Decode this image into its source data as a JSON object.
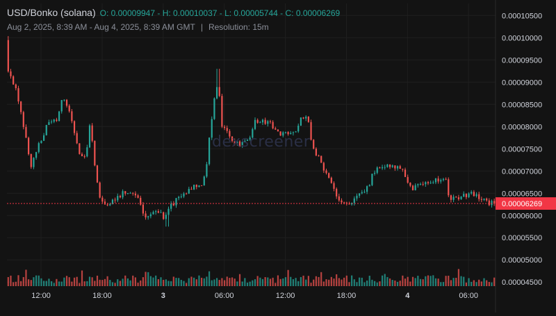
{
  "header": {
    "pair": "USD/Bonko (solana)",
    "ohlc": "O: 0.00009947 - H: 0.00010037 - L: 0.00005744 - C: 0.00006269",
    "range": "Aug 2, 2025, 8:39 AM - Aug 4, 2025, 8:39 AM GMT",
    "separator": "|",
    "resolution": "Resolution: 15m"
  },
  "watermark": "dexscreener",
  "colors": {
    "up": "#26a69a",
    "down": "#ef5350",
    "background": "#131313",
    "grid": "#1f1f1f",
    "axis_text": "#d1d4dc",
    "last_price_label": "#f23645"
  },
  "chart_data": {
    "type": "candlestick",
    "title": "USD/Bonko (solana)",
    "open": 9.947e-05,
    "high": 0.00010037,
    "low": 5.744e-05,
    "close": 6.269e-05,
    "resolution": "15m",
    "last_price": "0.00006269",
    "grid": true,
    "y_axis": {
      "position": "right",
      "ylim": [
        4.41e-05,
        0.0001077
      ],
      "ticks": [
        "0.00010500",
        "0.00010000",
        "0.00009500",
        "0.00009000",
        "0.00008500",
        "0.00008000",
        "0.00007500",
        "0.00007000",
        "0.00006500",
        "0.00006000",
        "0.00005500",
        "0.00005000",
        "0.00004500"
      ]
    },
    "x_axis": {
      "hours_range": [
        0,
        48
      ],
      "ticks": [
        {
          "label": "12:00",
          "hour": 3.35,
          "bold": false
        },
        {
          "label": "18:00",
          "hour": 9.35,
          "bold": false
        },
        {
          "label": "3",
          "hour": 15.35,
          "bold": true
        },
        {
          "label": "06:00",
          "hour": 21.35,
          "bold": false
        },
        {
          "label": "12:00",
          "hour": 27.35,
          "bold": false
        },
        {
          "label": "18:00",
          "hour": 33.35,
          "bold": false
        },
        {
          "label": "4",
          "hour": 39.35,
          "bold": true
        },
        {
          "label": "06:00",
          "hour": 45.35,
          "bold": false
        }
      ]
    },
    "price_path": [
      [
        0,
        9.95e-05
      ],
      [
        0.1,
        9.3e-05
      ],
      [
        0.5,
        9.15e-05
      ],
      [
        1.0,
        8.85e-05
      ],
      [
        1.5,
        8.35e-05
      ],
      [
        2.0,
        7.7e-05
      ],
      [
        2.5,
        7.05e-05
      ],
      [
        3.0,
        7.45e-05
      ],
      [
        3.5,
        7.7e-05
      ],
      [
        4.2,
        8.1e-05
      ],
      [
        5.0,
        8.15e-05
      ],
      [
        5.5,
        8.6e-05
      ],
      [
        6.0,
        8.5e-05
      ],
      [
        6.6,
        8e-05
      ],
      [
        7.2,
        7.4e-05
      ],
      [
        7.9,
        7.25e-05
      ],
      [
        8.3,
        8.2e-05
      ],
      [
        8.7,
        7.2e-05
      ],
      [
        9.2,
        6.4e-05
      ],
      [
        9.8,
        6.2e-05
      ],
      [
        10.5,
        6.3e-05
      ],
      [
        11.2,
        6.45e-05
      ],
      [
        12.0,
        6.55e-05
      ],
      [
        13.0,
        6.4e-05
      ],
      [
        13.6,
        6e-05
      ],
      [
        14.3,
        6.05e-05
      ],
      [
        15.0,
        6.1e-05
      ],
      [
        15.6,
        5.95e-05
      ],
      [
        16.2,
        6.2e-05
      ],
      [
        16.9,
        6.4e-05
      ],
      [
        17.8,
        6.5e-05
      ],
      [
        18.5,
        6.7e-05
      ],
      [
        19.2,
        6.65e-05
      ],
      [
        19.7,
        7.05e-05
      ],
      [
        20.0,
        7.75e-05
      ],
      [
        20.4,
        8.5e-05
      ],
      [
        20.9,
        9e-05
      ],
      [
        21.2,
        8e-05
      ],
      [
        21.8,
        7.95e-05
      ],
      [
        22.3,
        7.65e-05
      ],
      [
        22.9,
        7.6e-05
      ],
      [
        23.4,
        7.65e-05
      ],
      [
        24.0,
        7.7e-05
      ],
      [
        24.5,
        8.1e-05
      ],
      [
        25.2,
        8.1e-05
      ],
      [
        26.0,
        8.05e-05
      ],
      [
        26.6,
        7.85e-05
      ],
      [
        27.5,
        7.85e-05
      ],
      [
        28.4,
        7.85e-05
      ],
      [
        29.0,
        8.2e-05
      ],
      [
        29.7,
        8.15e-05
      ],
      [
        30.0,
        7.65e-05
      ],
      [
        30.6,
        7.35e-05
      ],
      [
        31.3,
        7.05e-05
      ],
      [
        32.0,
        6.7e-05
      ],
      [
        32.7,
        6.3e-05
      ],
      [
        33.4,
        6.25e-05
      ],
      [
        34.0,
        6.3e-05
      ],
      [
        34.8,
        6.5e-05
      ],
      [
        35.6,
        6.65e-05
      ],
      [
        36.2,
        7e-05
      ],
      [
        36.9,
        7.1e-05
      ],
      [
        37.7,
        7.1e-05
      ],
      [
        38.5,
        7.05e-05
      ],
      [
        39.0,
        7.05e-05
      ],
      [
        39.5,
        6.7e-05
      ],
      [
        40.1,
        6.6e-05
      ],
      [
        40.8,
        6.75e-05
      ],
      [
        41.6,
        6.7e-05
      ],
      [
        42.3,
        6.8e-05
      ],
      [
        43.2,
        6.85e-05
      ],
      [
        43.6,
        6.4e-05
      ],
      [
        44.3,
        6.4e-05
      ],
      [
        45.0,
        6.45e-05
      ],
      [
        45.7,
        6.5e-05
      ],
      [
        46.5,
        6.4e-05
      ],
      [
        47.2,
        6.3e-05
      ],
      [
        48.0,
        6.27e-05
      ]
    ],
    "volume": {
      "ylim": [
        0,
        8.75e-07
      ],
      "spikes": [
        [
          20.3,
          7.5e-08
        ],
        [
          21.1,
          9e-08
        ],
        [
          21.9,
          9.8e-08
        ],
        [
          20.7,
          7e-08
        ]
      ]
    }
  }
}
